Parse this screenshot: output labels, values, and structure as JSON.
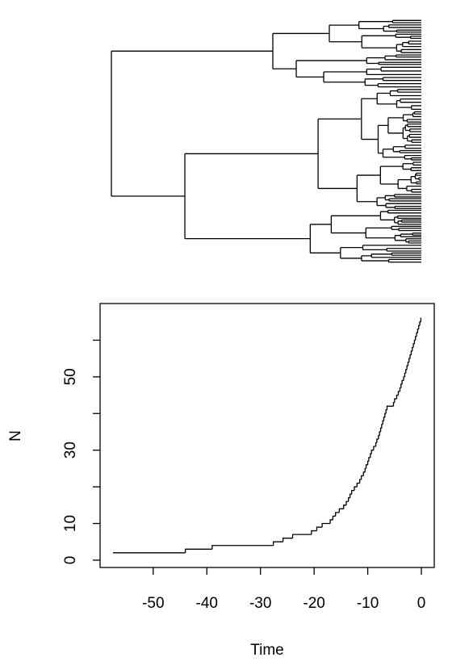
{
  "chart_data": {
    "type": "step",
    "xlabel": "Time",
    "ylabel": "N",
    "x": [
      -57.5,
      -44,
      -39,
      -27.6,
      -25.8,
      -24,
      -20.5,
      -19.5,
      -18.5,
      -17,
      -16.5,
      -16,
      -15.3,
      -14.5,
      -14,
      -13.6,
      -13.3,
      -13,
      -12.5,
      -12,
      -11.5,
      -11.2,
      -10.8,
      -10.5,
      -10.3,
      -10,
      -9.8,
      -9.5,
      -9.3,
      -8.9,
      -8.5,
      -8.3,
      -8,
      -7.8,
      -7.6,
      -7.4,
      -7.2,
      -7,
      -6.8,
      -6.6,
      -6.4,
      -5.2,
      -5,
      -4.6,
      -4.3,
      -4,
      -3.8,
      -3.6,
      -3.3,
      -3.1,
      -2.9,
      -2.7,
      -2.5,
      -2.3,
      -2.1,
      -1.9,
      -1.7,
      -1.5,
      -1.3,
      -1.1,
      -0.9,
      -0.7,
      -0.5,
      -0.3,
      -0.1,
      0
    ],
    "values": [
      2,
      3,
      4,
      5,
      6,
      7,
      8,
      9,
      10,
      11,
      12,
      13,
      14,
      15,
      16,
      17,
      18,
      19,
      20,
      21,
      22,
      23,
      24,
      25,
      26,
      27,
      28,
      29,
      30,
      31,
      32,
      33,
      34,
      35,
      36,
      37,
      38,
      39,
      40,
      41,
      42,
      43,
      44,
      45,
      46,
      47,
      48,
      49,
      50,
      51,
      52,
      53,
      54,
      55,
      56,
      57,
      58,
      59,
      60,
      61,
      62,
      63,
      64,
      65,
      66,
      66
    ],
    "color": "#000000",
    "xlim": [
      -59.9,
      2.4
    ],
    "ylim": [
      -2,
      70
    ],
    "xticks": [
      -50,
      -40,
      -30,
      -20,
      -10,
      0
    ],
    "yticks": [
      0,
      10,
      30,
      50
    ],
    "yticks_unlabeled": [
      20,
      40,
      60
    ]
  }
}
